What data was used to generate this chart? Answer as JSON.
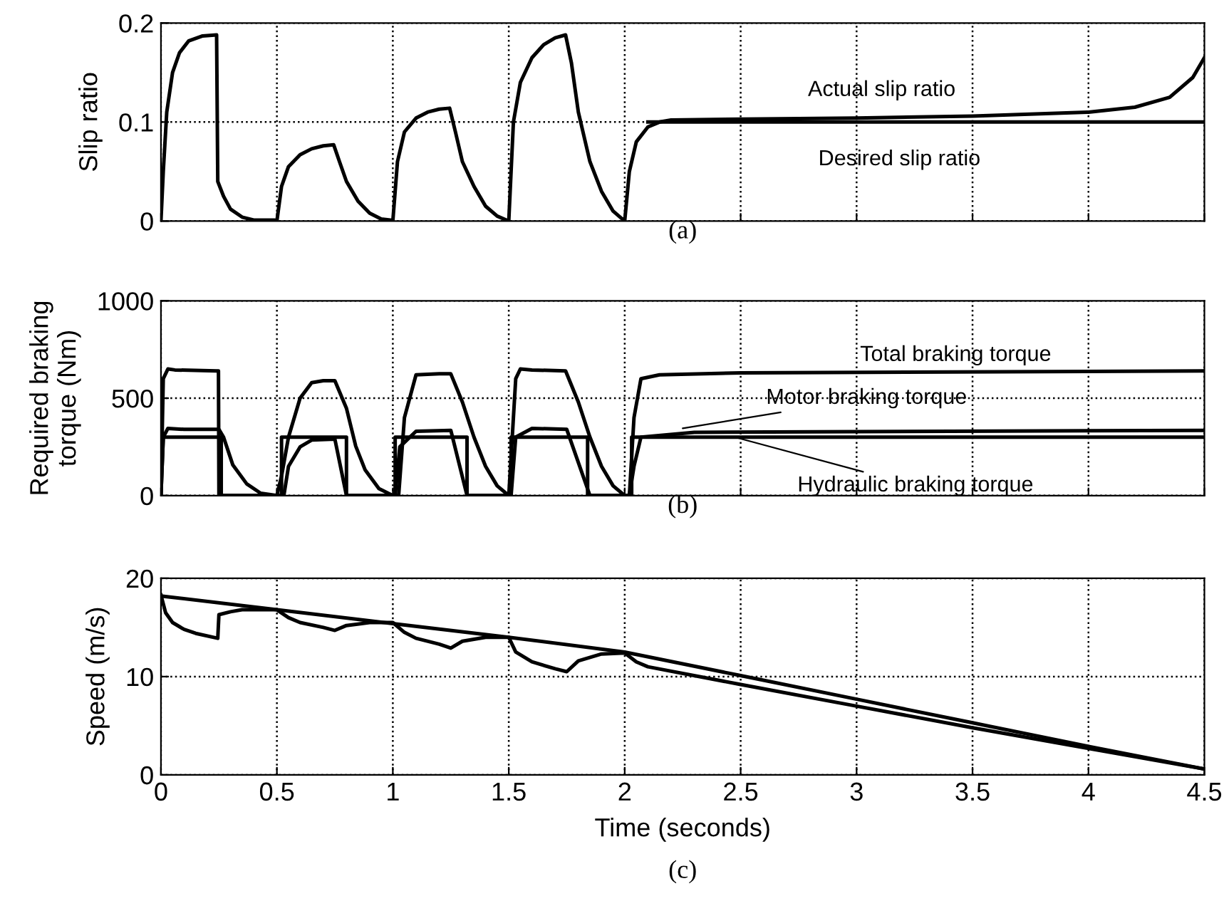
{
  "chart_data": [
    {
      "type": "line",
      "ylabel": "Slip ratio",
      "xlim": [
        0,
        4.5
      ],
      "xticks": [
        0,
        0.5,
        1,
        1.5,
        2,
        2.5,
        3,
        3.5,
        4,
        4.5
      ],
      "ylim": [
        0,
        0.2
      ],
      "yticks": [
        0,
        0.1,
        0.2
      ],
      "grid": true,
      "tick_labels": "y",
      "annotations": [
        "(a)"
      ],
      "series": [
        {
          "name": "Actual slip ratio",
          "color": "#000000",
          "x": [
            0,
            0.01,
            0.025,
            0.05,
            0.08,
            0.12,
            0.18,
            0.24,
            0.245,
            0.27,
            0.3,
            0.35,
            0.4,
            0.49,
            0.5,
            0.52,
            0.55,
            0.6,
            0.65,
            0.7,
            0.745,
            0.77,
            0.8,
            0.85,
            0.9,
            0.95,
            0.99,
            1.0,
            1.02,
            1.05,
            1.1,
            1.15,
            1.2,
            1.245,
            1.27,
            1.3,
            1.35,
            1.4,
            1.45,
            1.49,
            1.5,
            1.52,
            1.55,
            1.6,
            1.65,
            1.7,
            1.745,
            1.77,
            1.8,
            1.85,
            1.9,
            1.95,
            1.99,
            2.0,
            2.02,
            2.05,
            2.1,
            2.15,
            2.2,
            2.5,
            3.0,
            3.5,
            4.0,
            4.2,
            4.35,
            4.45,
            4.5
          ],
          "values": [
            0,
            0.05,
            0.11,
            0.15,
            0.17,
            0.182,
            0.187,
            0.188,
            0.04,
            0.025,
            0.012,
            0.004,
            0.001,
            0.001,
            0,
            0.035,
            0.055,
            0.067,
            0.073,
            0.076,
            0.077,
            0.06,
            0.04,
            0.02,
            0.008,
            0.002,
            0.001,
            0,
            0.06,
            0.09,
            0.104,
            0.11,
            0.113,
            0.114,
            0.09,
            0.06,
            0.035,
            0.015,
            0.005,
            0.001,
            0,
            0.1,
            0.14,
            0.165,
            0.178,
            0.185,
            0.188,
            0.16,
            0.11,
            0.06,
            0.03,
            0.01,
            0.002,
            0,
            0.05,
            0.08,
            0.095,
            0.1,
            0.102,
            0.103,
            0.104,
            0.106,
            0.11,
            0.115,
            0.125,
            0.145,
            0.165
          ]
        },
        {
          "name": "Desired slip ratio",
          "color": "#000000",
          "x": [
            2.1,
            4.5
          ],
          "values": [
            0.1,
            0.1
          ]
        }
      ]
    },
    {
      "type": "line",
      "ylabel": "Required braking\ntorque (Nm)",
      "xlim": [
        0,
        4.5
      ],
      "xticks": [
        0,
        0.5,
        1,
        1.5,
        2,
        2.5,
        3,
        3.5,
        4,
        4.5
      ],
      "ylim": [
        0,
        1000
      ],
      "yticks": [
        0,
        500,
        1000
      ],
      "grid": true,
      "tick_labels": "y",
      "annotations": [
        "(b)"
      ],
      "series": [
        {
          "name": "Total braking torque",
          "color": "#000000",
          "x": [
            0,
            0.01,
            0.03,
            0.06,
            0.24,
            0.248,
            0.25,
            0.5,
            0.52,
            0.55,
            0.6,
            0.65,
            0.7,
            0.75,
            0.8,
            0.84,
            0.88,
            0.94,
            1.0,
            1.025,
            1.05,
            1.1,
            1.2,
            1.25,
            1.3,
            1.35,
            1.4,
            1.45,
            1.5,
            1.515,
            1.53,
            1.55,
            1.6,
            1.745,
            1.8,
            1.85,
            1.9,
            1.95,
            2.0,
            2.02,
            2.04,
            2.07,
            2.15,
            2.5,
            4.5
          ],
          "values": [
            0,
            600,
            650,
            645,
            640,
            640,
            0,
            0,
            100,
            300,
            500,
            580,
            590,
            590,
            448,
            254,
            133,
            36,
            0,
            0,
            400,
            620,
            625,
            625,
            480,
            300,
            150,
            50,
            0,
            300,
            600,
            650,
            645,
            640,
            480,
            300,
            150,
            50,
            0,
            0,
            400,
            600,
            620,
            630,
            640
          ]
        },
        {
          "name": "Motor braking torque",
          "color": "#000000",
          "x": [
            0,
            0.01,
            0.03,
            0.1,
            0.25,
            0.27,
            0.31,
            0.37,
            0.43,
            0.5,
            0.53,
            0.55,
            0.6,
            0.65,
            0.75,
            0.8,
            1.0,
            1.01,
            1.03,
            1.1,
            1.25,
            1.32,
            1.5,
            1.51,
            1.53,
            1.6,
            1.75,
            1.85,
            2.02,
            2.04,
            2.07,
            2.3,
            4.5
          ],
          "values": [
            0,
            300,
            345,
            340,
            340,
            300,
            157,
            60,
            12,
            0,
            0,
            150,
            250,
            285,
            290,
            0,
            0,
            0,
            250,
            330,
            335,
            0,
            0,
            0,
            300,
            345,
            340,
            0,
            0,
            150,
            300,
            325,
            335
          ]
        },
        {
          "name": "Hydraulic braking torque",
          "color": "#000000",
          "x": [
            0,
            0.01,
            0.26,
            0.26,
            0.52,
            0.52,
            0.8,
            0.8,
            1.01,
            1.01,
            1.32,
            1.32,
            1.51,
            1.51,
            1.84,
            1.84,
            2.03,
            2.03,
            4.5
          ],
          "values": [
            0,
            300,
            300,
            0,
            0,
            300,
            300,
            0,
            0,
            300,
            300,
            0,
            0,
            300,
            300,
            0,
            0,
            300,
            300
          ]
        }
      ]
    },
    {
      "type": "line",
      "ylabel": "Speed (m/s)",
      "xlabel": "Time (seconds)",
      "xlim": [
        0,
        4.5
      ],
      "xticks": [
        0,
        0.5,
        1,
        1.5,
        2,
        2.5,
        3,
        3.5,
        4,
        4.5
      ],
      "ylim": [
        0,
        20
      ],
      "yticks": [
        0,
        10,
        20
      ],
      "grid": true,
      "annotations": [
        "(c)"
      ],
      "series": [
        {
          "color": "#000000",
          "x": [
            0,
            0.5,
            1.0,
            1.5,
            2.0,
            2.5,
            3.0,
            3.5,
            4.0,
            4.5
          ],
          "values": [
            18.2,
            16.8,
            15.4,
            14.0,
            12.5,
            10.1,
            7.7,
            5.3,
            2.9,
            0.6
          ]
        },
        {
          "color": "#000000",
          "x": [
            0,
            0.02,
            0.05,
            0.1,
            0.15,
            0.245,
            0.25,
            0.3,
            0.35,
            0.5,
            0.55,
            0.6,
            0.7,
            0.75,
            0.8,
            0.9,
            1.0,
            1.05,
            1.1,
            1.2,
            1.25,
            1.3,
            1.4,
            1.5,
            1.53,
            1.6,
            1.7,
            1.75,
            1.8,
            1.9,
            2.0,
            2.05,
            2.1,
            2.5,
            3.0,
            3.5,
            4.0,
            4.5
          ],
          "values": [
            18.3,
            16.5,
            15.5,
            14.8,
            14.4,
            13.9,
            16.3,
            16.6,
            16.8,
            16.8,
            16.0,
            15.5,
            15.0,
            14.7,
            15.2,
            15.5,
            15.5,
            14.5,
            13.9,
            13.3,
            12.9,
            13.6,
            14.0,
            14.0,
            12.5,
            11.5,
            10.8,
            10.5,
            11.6,
            12.3,
            12.4,
            11.5,
            11.0,
            9.2,
            7.0,
            4.8,
            2.7,
            0.6
          ]
        }
      ]
    }
  ]
}
